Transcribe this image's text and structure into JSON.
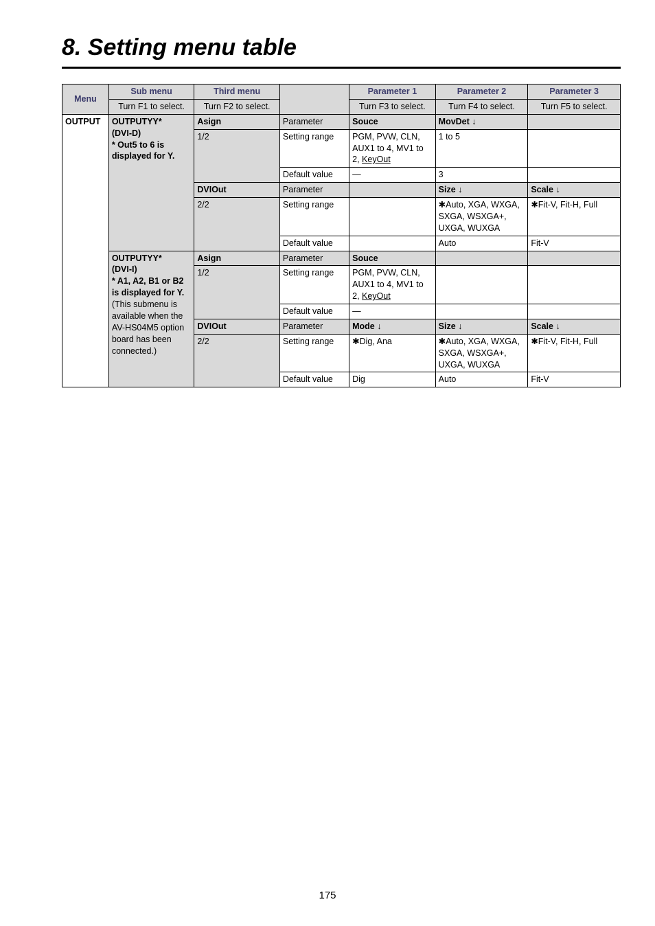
{
  "page": {
    "title": "8. Setting menu table",
    "number": "175"
  },
  "header": {
    "menu": "Menu",
    "sub_menu": "Sub menu",
    "third_menu": "Third menu",
    "blank": "",
    "p1": "Parameter 1",
    "p2": "Parameter 2",
    "p3": "Parameter 3",
    "f1": "Turn F1 to select.",
    "f2": "Turn F2 to select.",
    "f3": "Turn F3 to select.",
    "f4": "Turn F4 to select.",
    "f5": "Turn F5 to select."
  },
  "menu_col": "OUTPUT",
  "blocks": [
    {
      "sub": {
        "title": "OUTPUTYY*",
        "line2": "(DVI-D)",
        "line3": "* Out5 to 6 is displayed for Y.",
        "note": ""
      },
      "rows": [
        {
          "third": "Asign",
          "page": "1/2",
          "param": {
            "label": "Parameter",
            "p1": "Souce",
            "p2": "MovDet ↓",
            "p3": ""
          },
          "range": {
            "label": "Setting range",
            "p1_html": "PGM, PVW, CLN, AUX1 to 4, MV1 to 2, <span class='u'>KeyOut</span>",
            "p2": "1 to 5",
            "p3": ""
          },
          "default": {
            "label": "Default value",
            "p1": "—",
            "p2": "3",
            "p3": ""
          }
        },
        {
          "third": "DVIOut",
          "page": "2/2",
          "param": {
            "label": "Parameter",
            "p1": "",
            "p2": "Size ↓",
            "p3": "Scale ↓"
          },
          "range": {
            "label": "Setting range",
            "p1_html": "",
            "p2": "✱Auto, XGA, WXGA, SXGA, WSXGA+, UXGA, WUXGA",
            "p3": "✱Fit-V, Fit-H, Full"
          },
          "default": {
            "label": "Default value",
            "p1": "",
            "p2": "Auto",
            "p3": "Fit-V"
          }
        }
      ]
    },
    {
      "sub": {
        "title": "OUTPUTYY*",
        "line2": "(DVI-I)",
        "line3": "* A1, A2, B1 or B2 is displayed for Y.",
        "note": "(This submenu is available when the AV-HS04M5 option board has been connected.)"
      },
      "rows": [
        {
          "third": "Asign",
          "page": "1/2",
          "param": {
            "label": "Parameter",
            "p1": "Souce",
            "p2": "",
            "p3": ""
          },
          "range": {
            "label": "Setting range",
            "p1_html": "PGM, PVW, CLN, AUX1 to 4, MV1 to 2, <span class='u'>KeyOut</span>",
            "p2": "",
            "p3": ""
          },
          "default": {
            "label": "Default value",
            "p1": "—",
            "p2": "",
            "p3": ""
          }
        },
        {
          "third": "DVIOut",
          "page": "2/2",
          "param": {
            "label": "Parameter",
            "p1": "Mode ↓",
            "p2": "Size ↓",
            "p3": "Scale ↓"
          },
          "range": {
            "label": "Setting range",
            "p1_html": "✱Dig, Ana",
            "p2": "✱Auto, XGA, WXGA, SXGA, WSXGA+, UXGA, WUXGA",
            "p3": "✱Fit-V, Fit-H, Full"
          },
          "default": {
            "label": "Default value",
            "p1": "Dig",
            "p2": "Auto",
            "p3": "Fit-V"
          }
        }
      ]
    }
  ]
}
